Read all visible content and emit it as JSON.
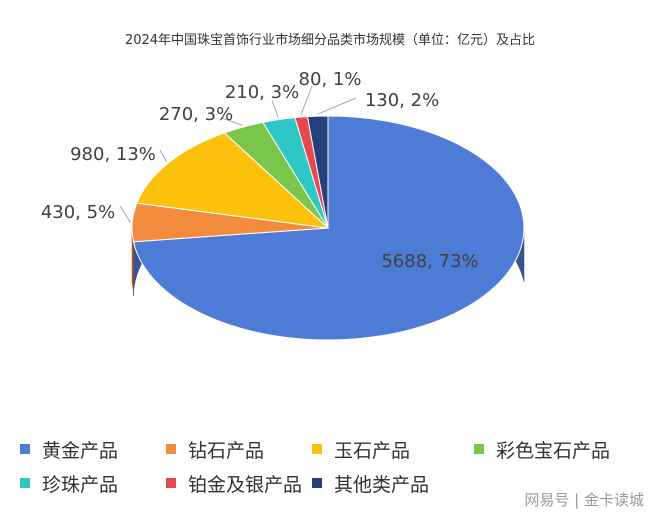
{
  "chart_data": {
    "type": "pie",
    "title": "2024年中国珠宝首饰行业市场细分品类市场规模（单位：亿元）及占比",
    "legend_position": "bottom",
    "slices": [
      {
        "name": "黄金产品",
        "value": 5688,
        "percent": "73%",
        "label": "5688, 73%",
        "color": "#4E7BD6"
      },
      {
        "name": "钻石产品",
        "value": 430,
        "percent": "5%",
        "label": "430, 5%",
        "color": "#F28B3C"
      },
      {
        "name": "玉石产品",
        "value": 980,
        "percent": "13%",
        "label": "980, 13%",
        "color": "#FBC10B"
      },
      {
        "name": "彩色宝石产品",
        "value": 270,
        "percent": "3%",
        "label": "270, 3%",
        "color": "#79C64A"
      },
      {
        "name": "珍珠产品",
        "value": 210,
        "percent": "3%",
        "label": "210, 3%",
        "color": "#2FC7C3"
      },
      {
        "name": "铂金及银产品",
        "value": 80,
        "percent": "1%",
        "label": "80, 1%",
        "color": "#E5484F"
      },
      {
        "name": "其他类产品",
        "value": 130,
        "percent": "2%",
        "label": "130, 2%",
        "color": "#26407A"
      }
    ]
  },
  "watermark": "网易号 | 金卡读城"
}
